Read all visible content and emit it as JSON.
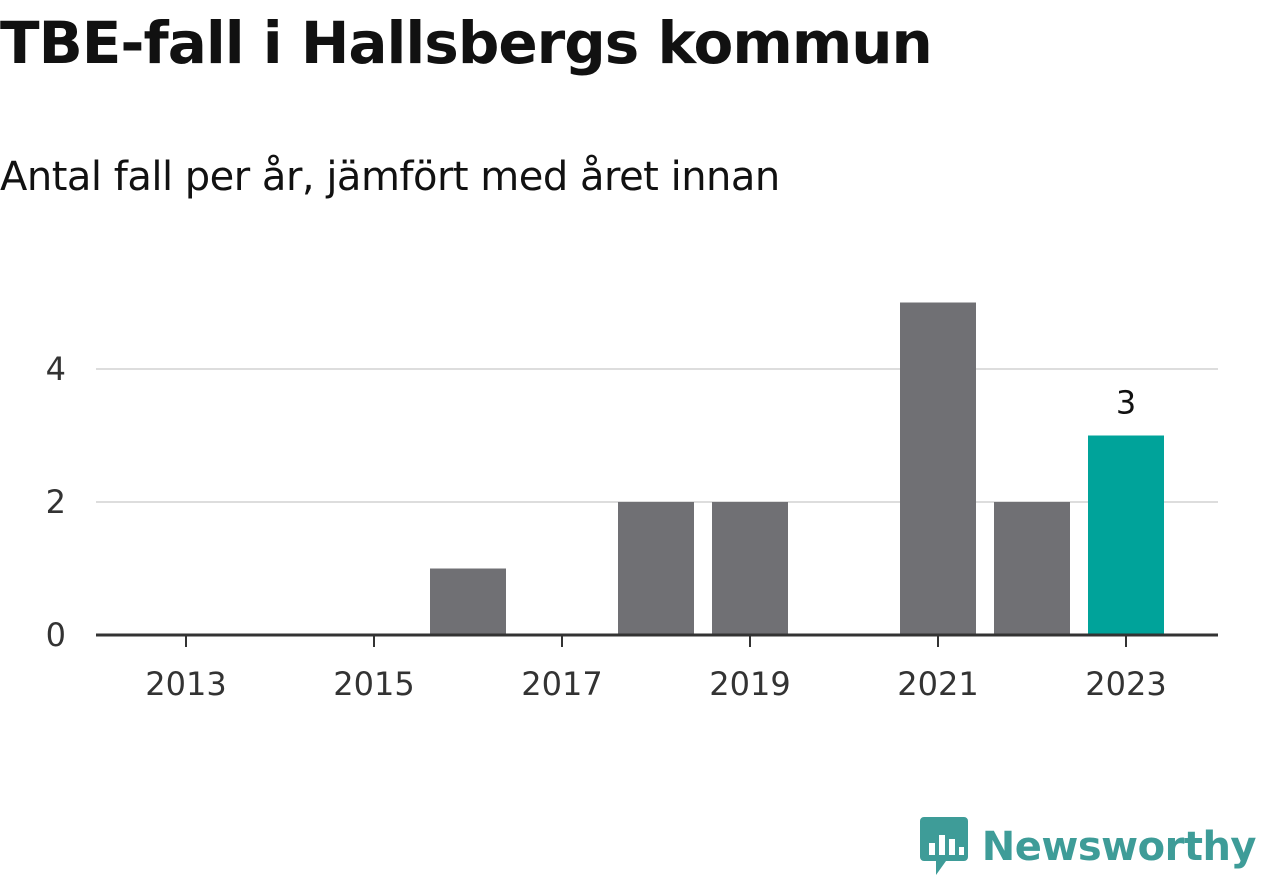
{
  "title": "TBE-fall i Hallsbergs kommun",
  "subtitle": "Antal fall per år, jämfört med året innan",
  "brand": {
    "name": "Newsworthy",
    "color": "#3e9c98"
  },
  "colors": {
    "bar_default": "#707074",
    "bar_highlight": "#00a39a",
    "gridline": "#dddddd",
    "axis": "#333333"
  },
  "chart_data": {
    "type": "bar",
    "x": [
      2013,
      2014,
      2015,
      2016,
      2017,
      2018,
      2019,
      2020,
      2021,
      2022,
      2023
    ],
    "values": [
      0,
      0,
      0,
      1,
      0,
      2,
      2,
      0,
      5,
      2,
      3
    ],
    "x_tick_labels": [
      "2013",
      "2015",
      "2017",
      "2019",
      "2021",
      "2023"
    ],
    "y_tick_labels": [
      "0",
      "2",
      "4"
    ],
    "ylim": [
      0,
      5
    ],
    "highlight": {
      "x": 2023,
      "label": "3"
    },
    "grid": true,
    "legend": "none"
  }
}
